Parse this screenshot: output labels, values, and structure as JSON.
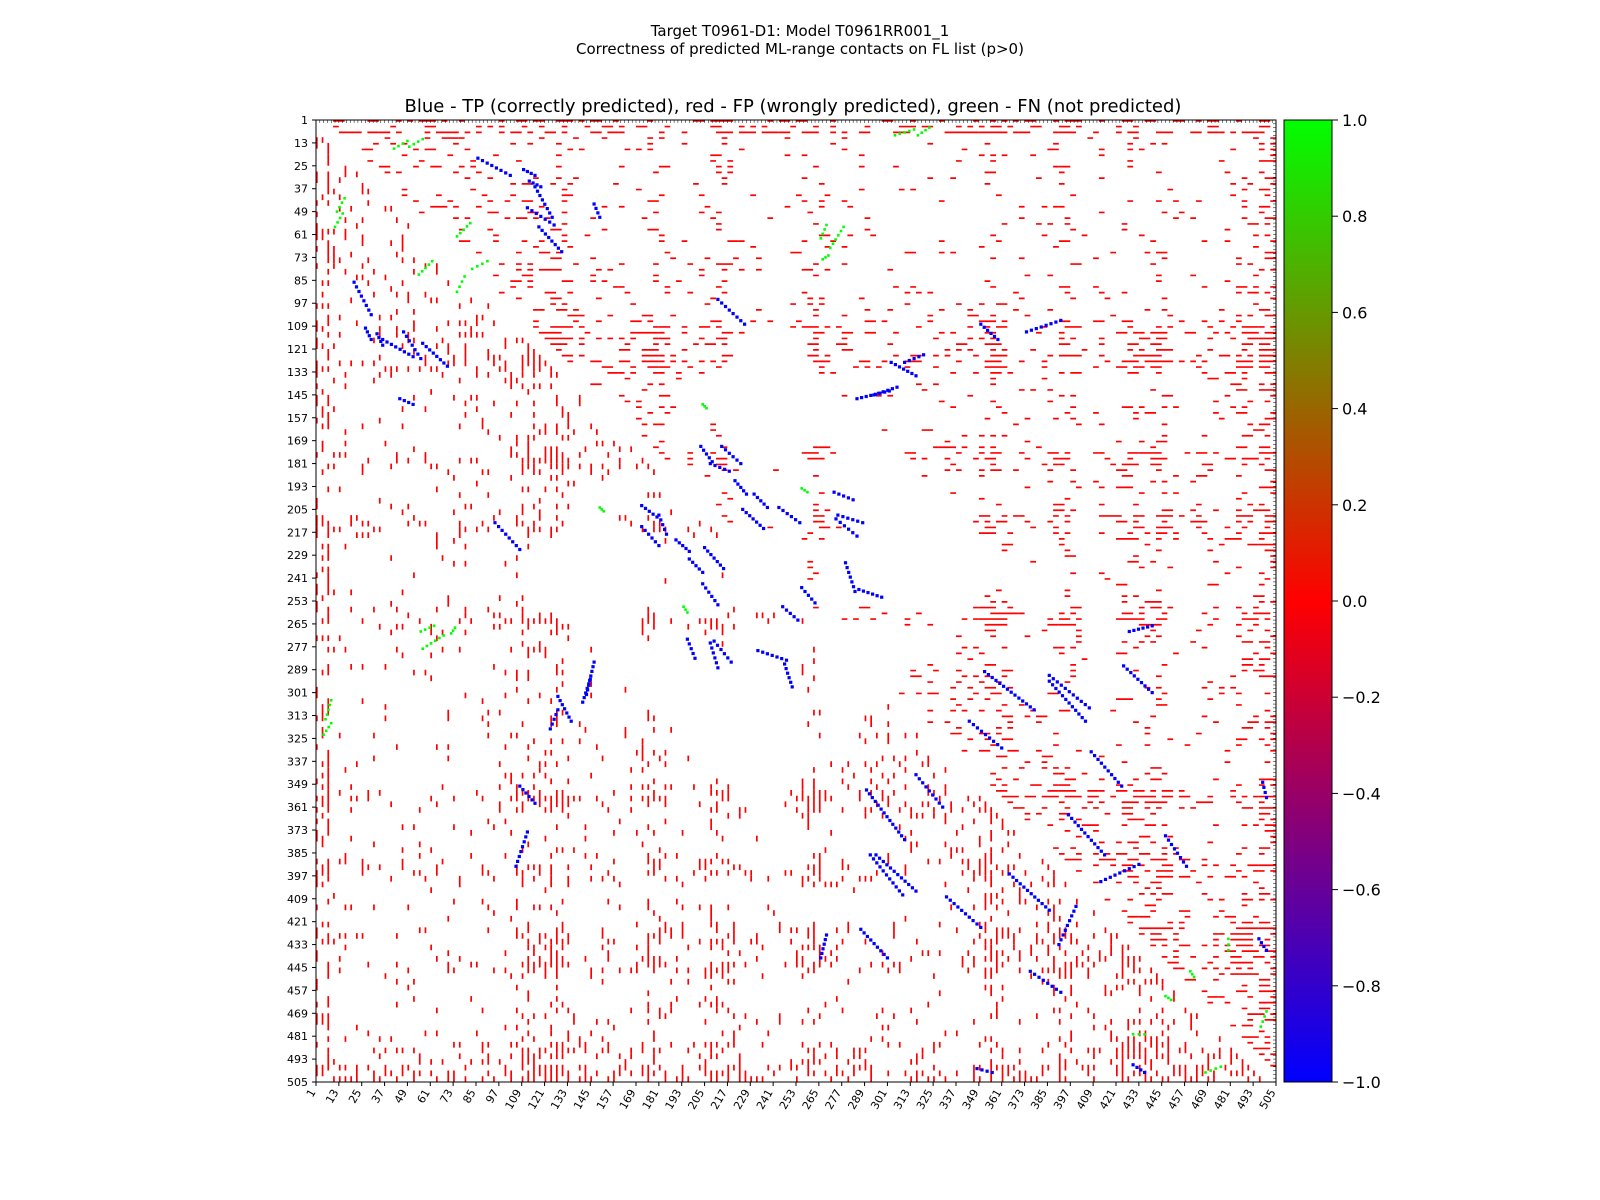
{
  "chart_data": {
    "type": "heatmap",
    "suptitle": "Target T0961-D1: Model T0961RR001_1",
    "subtitle": "Correctness of predicted ML-range contacts on FL list (p>0)",
    "title": "Blue - TP (correctly predicted), red - FP (wrongly predicted), green - FN (not predicted)",
    "xlabel": "",
    "ylabel": "",
    "xlim": [
      1,
      505
    ],
    "ylim": [
      1,
      505
    ],
    "tick_labels": [
      "1",
      "13",
      "25",
      "37",
      "49",
      "61",
      "73",
      "85",
      "97",
      "109",
      "121",
      "133",
      "145",
      "157",
      "169",
      "181",
      "193",
      "205",
      "217",
      "229",
      "241",
      "253",
      "265",
      "277",
      "289",
      "301",
      "313",
      "325",
      "337",
      "349",
      "361",
      "373",
      "385",
      "397",
      "409",
      "421",
      "433",
      "445",
      "457",
      "469",
      "481",
      "493",
      "505"
    ],
    "colorbar": {
      "range": [
        -1.0,
        1.0
      ],
      "ticks": [
        "1.0",
        "0.8",
        "0.6",
        "0.4",
        "0.2",
        "0.0",
        "−0.2",
        "−0.4",
        "−0.6",
        "−0.8",
        "−1.0"
      ],
      "colors": [
        "#0000ff",
        "#ff0000",
        "#00ff00"
      ]
    },
    "colors": {
      "tp": "#0000ff",
      "fp": "#ff0000",
      "fn": "#00ff00"
    },
    "series": [
      {
        "name": "TP",
        "value": -1,
        "color": "#0000ff",
        "segments": [
          [
            [
              27,
              110
            ],
            [
              30,
              116
            ]
          ],
          [
            [
              33,
              113
            ],
            [
              36,
              119
            ]
          ],
          [
            [
              52,
              150
            ],
            [
              45,
              147
            ]
          ],
          [
            [
              103,
              30
            ],
            [
              86,
              21
            ]
          ],
          [
            [
              116,
              36
            ],
            [
              125,
              52
            ]
          ],
          [
            [
              95,
              212
            ],
            [
              108,
              226
            ]
          ],
          [
            [
              112,
              47
            ],
            [
              126,
              56
            ]
          ],
          [
            [
              118,
              57
            ],
            [
              130,
              70
            ]
          ],
          [
            [
              147,
              285
            ],
            [
              143,
              302
            ]
          ],
          [
            [
              172,
              203
            ],
            [
              180,
              209
            ]
          ],
          [
            [
              190,
              221
            ],
            [
              197,
              227
            ]
          ],
          [
            [
              205,
              225
            ],
            [
              215,
              236
            ]
          ],
          [
            [
              208,
              181
            ],
            [
              218,
              185
            ]
          ],
          [
            [
              214,
              172
            ],
            [
              224,
              181
            ]
          ],
          [
            [
              231,
              197
            ],
            [
              238,
              204
            ]
          ],
          [
            [
              244,
              204
            ],
            [
              255,
              212
            ]
          ],
          [
            [
              210,
              274
            ],
            [
              219,
              285
            ]
          ],
          [
            [
              233,
              279
            ],
            [
              248,
              284
            ]
          ],
          [
            [
              273,
              196
            ],
            [
              283,
              200
            ]
          ],
          [
            [
              275,
              208
            ],
            [
              288,
              212
            ]
          ],
          [
            [
              256,
              246
            ],
            [
              263,
              254
            ]
          ],
          [
            [
              286,
              247
            ],
            [
              298,
              251
            ]
          ],
          [
            [
              303,
              128
            ],
            [
              316,
              135
            ]
          ],
          [
            [
              350,
              108
            ],
            [
              359,
              116
            ]
          ],
          [
            [
              128,
              310
            ],
            [
              124,
              320
            ]
          ],
          [
            [
              145,
              294
            ],
            [
              141,
              306
            ]
          ],
          [
            [
              112,
              374
            ],
            [
              106,
              392
            ]
          ],
          [
            [
              295,
              386
            ],
            [
              316,
              405
            ]
          ],
          [
            [
              316,
              344
            ],
            [
              330,
              361
            ]
          ],
          [
            [
              352,
              290
            ],
            [
              378,
              310
            ]
          ],
          [
            [
              386,
              292
            ],
            [
              407,
              309
            ]
          ],
          [
            [
              408,
              332
            ],
            [
              424,
              350
            ]
          ],
          [
            [
              365,
              396
            ],
            [
              386,
              415
            ]
          ],
          [
            [
              400,
              413
            ],
            [
              391,
              433
            ]
          ],
          [
            [
              425,
              287
            ],
            [
              440,
              301
            ]
          ],
          [
            [
              447,
              376
            ],
            [
              458,
              392
            ]
          ],
          [
            [
              496,
              430
            ],
            [
              500,
              436
            ]
          ],
          [
            [
              498,
              348
            ],
            [
              500,
              356
            ]
          ],
          [
            [
              269,
              428
            ],
            [
              266,
              440
            ]
          ]
        ]
      },
      {
        "name": "FN",
        "value": 1,
        "color": "#00ff00",
        "segments": [
          [
            [
              15,
              50
            ],
            [
              11,
              57
            ]
          ],
          [
            [
              49,
              12
            ],
            [
              42,
              16
            ]
          ],
          [
            [
              62,
              75
            ],
            [
              55,
              82
            ]
          ],
          [
            [
              79,
              83
            ],
            [
              75,
              91
            ]
          ],
          [
            [
              9,
              305
            ],
            [
              6,
              315
            ]
          ],
          [
            [
              57,
              278
            ],
            [
              68,
              271
            ]
          ],
          [
            [
              74,
              267
            ],
            [
              72,
              270
            ]
          ],
          [
            [
              269,
              56
            ],
            [
              266,
              63
            ]
          ],
          [
            [
              323,
              5
            ],
            [
              317,
              9
            ]
          ],
          [
            [
              500,
              468
            ],
            [
              497,
              476
            ]
          ],
          [
            [
              480,
              430
            ],
            [
              480,
              436
            ]
          ],
          [
            [
              460,
              447
            ],
            [
              462,
              450
            ]
          ],
          [
            [
              194,
              256
            ],
            [
              196,
              259
            ]
          ],
          [
            [
              150,
              204
            ],
            [
              152,
              206
            ]
          ]
        ]
      }
    ]
  }
}
